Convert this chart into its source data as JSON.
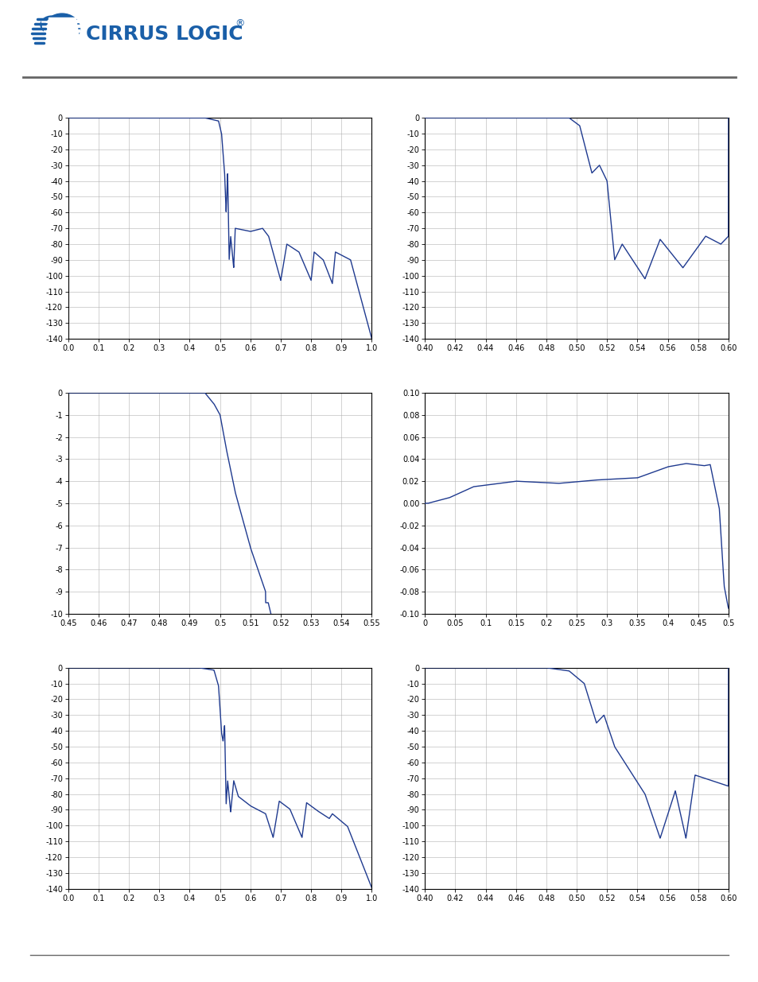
{
  "line_color": "#1f3a8f",
  "bg_color": "#ffffff",
  "grid_color": "#b0b0b0",
  "axis_color": "#000000",
  "tick_fontsize": 7.0,
  "logo_color": "#1a5fa8",
  "plots": [
    {
      "id": "plot1",
      "xlim": [
        0.0,
        1.0
      ],
      "ylim": [
        -140,
        0
      ],
      "xticks": [
        0.0,
        0.1,
        0.2,
        0.3,
        0.4,
        0.5,
        0.6,
        0.7,
        0.8,
        0.9,
        1.0
      ],
      "xticklabels": [
        "0.0",
        "0.1",
        "0.2",
        "0.3",
        "0.4",
        "0.5",
        "0.6",
        "0.7",
        "0.8",
        "0.9",
        "1.0"
      ],
      "yticks": [
        0,
        -10,
        -20,
        -30,
        -40,
        -50,
        -60,
        -70,
        -80,
        -90,
        -100,
        -110,
        -120,
        -130,
        -140
      ],
      "yticklabels": [
        "0",
        "-10",
        "-20",
        "-30",
        "-40",
        "-50",
        "-60",
        "-70",
        "-80",
        "-90",
        "-100",
        "-110",
        "-120",
        "-130",
        "-140"
      ]
    },
    {
      "id": "plot2",
      "xlim": [
        0.4,
        0.6
      ],
      "ylim": [
        -140,
        0
      ],
      "xticks": [
        0.4,
        0.42,
        0.44,
        0.46,
        0.48,
        0.5,
        0.52,
        0.54,
        0.56,
        0.58,
        0.6
      ],
      "xticklabels": [
        "0.40",
        "0.42",
        "0.44",
        "0.46",
        "0.48",
        "0.50",
        "0.52",
        "0.54",
        "0.56",
        "0.58",
        "0.60"
      ],
      "yticks": [
        0,
        -10,
        -20,
        -30,
        -40,
        -50,
        -60,
        -70,
        -80,
        -90,
        -100,
        -110,
        -120,
        -130,
        -140
      ],
      "yticklabels": [
        "0",
        "-10",
        "-20",
        "-30",
        "-40",
        "-50",
        "-60",
        "-70",
        "-80",
        "-90",
        "-100",
        "-110",
        "-120",
        "-130",
        "-140"
      ]
    },
    {
      "id": "plot3",
      "xlim": [
        0.45,
        0.55
      ],
      "ylim": [
        -10,
        0
      ],
      "xticks": [
        0.45,
        0.46,
        0.47,
        0.48,
        0.49,
        0.5,
        0.51,
        0.52,
        0.53,
        0.54,
        0.55
      ],
      "xticklabels": [
        "0.45",
        "0.46",
        "0.47",
        "0.48",
        "0.49",
        "0.5",
        "0.51",
        "0.52",
        "0.53",
        "0.54",
        "0.55"
      ],
      "yticks": [
        0,
        -1,
        -2,
        -3,
        -4,
        -5,
        -6,
        -7,
        -8,
        -9,
        -10
      ],
      "yticklabels": [
        "0",
        "-1",
        "-2",
        "-3",
        "-4",
        "-5",
        "-6",
        "-7",
        "-8",
        "-9",
        "-10"
      ]
    },
    {
      "id": "plot4",
      "xlim": [
        0.0,
        0.5
      ],
      "ylim": [
        -0.1,
        0.1
      ],
      "xticks": [
        0.0,
        0.05,
        0.1,
        0.15,
        0.2,
        0.25,
        0.3,
        0.35,
        0.4,
        0.45,
        0.5
      ],
      "xticklabels": [
        "0",
        "0.05",
        "0.1",
        "0.15",
        "0.2",
        "0.25",
        "0.3",
        "0.35",
        "0.4",
        "0.45",
        "0.5"
      ],
      "yticks": [
        -0.1,
        -0.08,
        -0.06,
        -0.04,
        -0.02,
        0.0,
        0.02,
        0.04,
        0.06,
        0.08,
        0.1
      ],
      "yticklabels": [
        "-0.10",
        "-0.08",
        "-0.06",
        "-0.04",
        "-0.02",
        "0.00",
        "0.02",
        "0.04",
        "0.06",
        "0.08",
        "0.10"
      ]
    },
    {
      "id": "plot5",
      "xlim": [
        0.0,
        1.0
      ],
      "ylim": [
        -140,
        0
      ],
      "xticks": [
        0.0,
        0.1,
        0.2,
        0.3,
        0.4,
        0.5,
        0.6,
        0.7,
        0.8,
        0.9,
        1.0
      ],
      "xticklabels": [
        "0.0",
        "0.1",
        "0.2",
        "0.3",
        "0.4",
        "0.5",
        "0.6",
        "0.7",
        "0.8",
        "0.9",
        "1.0"
      ],
      "yticks": [
        0,
        -10,
        -20,
        -30,
        -40,
        -50,
        -60,
        -70,
        -80,
        -90,
        -100,
        -110,
        -120,
        -130,
        -140
      ],
      "yticklabels": [
        "0",
        "-10",
        "-20",
        "-30",
        "-40",
        "-50",
        "-60",
        "-70",
        "-80",
        "-90",
        "-100",
        "-110",
        "-120",
        "-130",
        "-140"
      ]
    },
    {
      "id": "plot6",
      "xlim": [
        0.4,
        0.6
      ],
      "ylim": [
        -140,
        0
      ],
      "xticks": [
        0.4,
        0.42,
        0.44,
        0.46,
        0.48,
        0.5,
        0.52,
        0.54,
        0.56,
        0.58,
        0.6
      ],
      "xticklabels": [
        "0.40",
        "0.42",
        "0.44",
        "0.46",
        "0.48",
        "0.50",
        "0.52",
        "0.54",
        "0.56",
        "0.58",
        "0.60"
      ],
      "yticks": [
        0,
        -10,
        -20,
        -30,
        -40,
        -50,
        -60,
        -70,
        -80,
        -90,
        -100,
        -110,
        -120,
        -130,
        -140
      ],
      "yticklabels": [
        "0",
        "-10",
        "-20",
        "-30",
        "-40",
        "-50",
        "-60",
        "-70",
        "-80",
        "-90",
        "-100",
        "-110",
        "-120",
        "-130",
        "-140"
      ]
    }
  ]
}
